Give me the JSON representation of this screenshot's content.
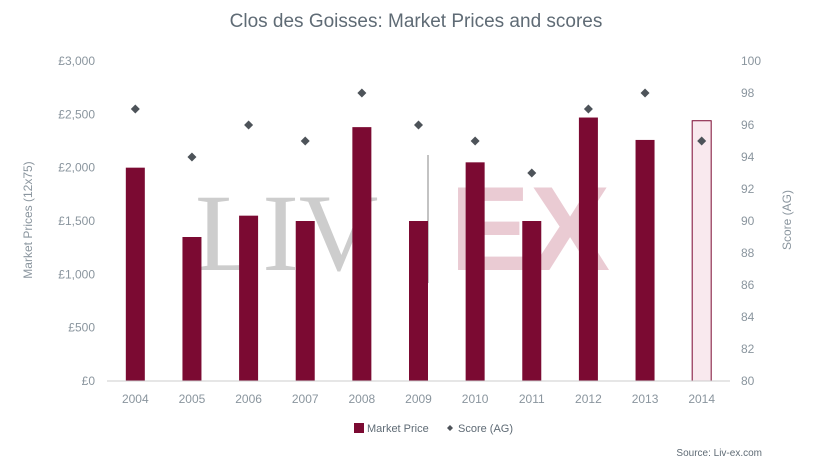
{
  "chart_data": {
    "type": "bar",
    "title": "Clos des Goisses: Market Prices and scores",
    "categories": [
      "2004",
      "2005",
      "2006",
      "2007",
      "2008",
      "2009",
      "2010",
      "2011",
      "2012",
      "2013",
      "2014"
    ],
    "series": [
      {
        "name": "Market Price",
        "kind": "bar",
        "axis": "left",
        "color": "#7b0a32",
        "values": [
          2000,
          1350,
          1550,
          1500,
          2380,
          1500,
          2050,
          1500,
          2470,
          2260,
          2440
        ],
        "highlight_last": true,
        "highlight_fill": "#f9e9ee"
      },
      {
        "name": "Score (AG)",
        "kind": "scatter",
        "axis": "right",
        "color": "#4d5359",
        "values": [
          97,
          94,
          96,
          95,
          98,
          96,
          95,
          93,
          97,
          98,
          95
        ]
      }
    ],
    "ylabel": "Market Prices (12x75)",
    "ylabel_right": "Score (AG)",
    "ylim": [
      0,
      3000
    ],
    "ylim_right": [
      80,
      100
    ],
    "yticks": [
      "£0",
      "£500",
      "£1,000",
      "£1,500",
      "£2,000",
      "£2,500",
      "£3,000"
    ],
    "yticks_right": [
      "80",
      "82",
      "84",
      "86",
      "88",
      "90",
      "92",
      "94",
      "96",
      "98",
      "100"
    ],
    "grid": false,
    "legend_placement": "bottom-center",
    "watermark": {
      "left": "LIV",
      "right": "EX"
    },
    "source": "Source: Liv-ex.com"
  }
}
